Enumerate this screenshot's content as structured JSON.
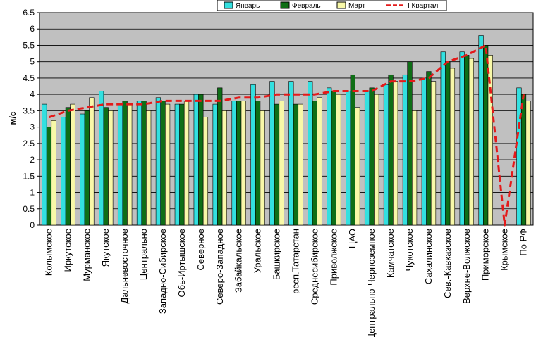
{
  "chart_data": {
    "type": "bar",
    "ylabel": "м/с",
    "ylim": [
      0,
      6.5
    ],
    "ytick_step": 0.5,
    "grid": true,
    "legend_position": "top",
    "categories": [
      "Колымское",
      "Иркутское",
      "Мурманское",
      "Якутское",
      "Дальневосточное",
      "Центрально",
      "Западно-Сибирское",
      "Обь-Иртышское",
      "Северное",
      "Северо-Западное",
      "Забайкальское",
      "Уральское",
      "Башкирское",
      "респ.Татарстан",
      "Среднесибирское",
      "Приволжское",
      "ЦАО",
      "Центрально-Черноземное",
      "Камчатское",
      "Чукотское",
      "Сахалинское",
      "Сев.-Кавказское",
      "Верхне-Волжское",
      "Приморское",
      "Крымское",
      "По РФ"
    ],
    "series": [
      {
        "name": "Январь",
        "kind": "bar",
        "color": "#33e0e0",
        "values": [
          3.7,
          3.3,
          3.4,
          4.1,
          3.7,
          3.8,
          3.9,
          3.7,
          4.0,
          3.7,
          3.8,
          4.3,
          4.4,
          4.4,
          4.4,
          4.2,
          4.1,
          4.1,
          4.3,
          4.6,
          4.5,
          5.3,
          5.3,
          5.8,
          null,
          4.2
        ]
      },
      {
        "name": "Февраль",
        "kind": "bar",
        "color": "#0e6e16",
        "values": [
          3.0,
          3.6,
          3.5,
          3.6,
          3.8,
          3.8,
          3.8,
          3.7,
          4.0,
          4.2,
          3.8,
          3.8,
          3.7,
          3.7,
          3.8,
          4.1,
          4.6,
          4.2,
          4.6,
          5.0,
          4.7,
          5.0,
          5.2,
          5.5,
          null,
          4.0
        ]
      },
      {
        "name": "Март",
        "kind": "bar",
        "color": "#f8f8a8",
        "values": [
          3.2,
          3.7,
          3.9,
          3.5,
          3.7,
          3.5,
          3.7,
          3.8,
          3.3,
          3.5,
          3.8,
          3.5,
          3.8,
          3.7,
          3.9,
          4.0,
          3.6,
          4.0,
          4.4,
          3.5,
          4.4,
          4.8,
          5.1,
          5.2,
          null,
          3.8
        ]
      },
      {
        "name": "I Квартал",
        "kind": "line",
        "color": "#e41a1a",
        "values": [
          3.3,
          3.5,
          3.6,
          3.7,
          3.7,
          3.7,
          3.8,
          3.8,
          3.8,
          3.8,
          3.9,
          3.9,
          4.0,
          4.0,
          4.0,
          4.1,
          4.1,
          4.1,
          4.4,
          4.4,
          4.5,
          5.0,
          5.2,
          5.5,
          0,
          4.0
        ]
      }
    ]
  },
  "colors": {
    "plot_background": "#c0c0c0",
    "grid": "#000000"
  }
}
